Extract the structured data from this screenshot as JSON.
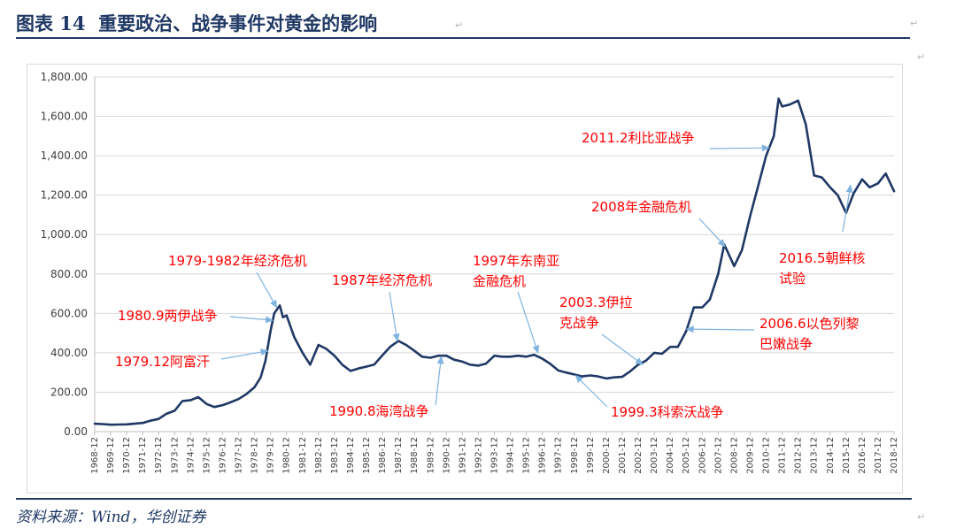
{
  "header": {
    "figure_label": "图表 14",
    "title": "重要政治、战争事件对黄金的影响",
    "para_mark": "↵"
  },
  "source": "资料来源：Wind，华创证券",
  "colors": {
    "line": "#1f3864",
    "annotation": "#ff0000",
    "arrow": "#7fb3e0",
    "accent": "#1f3864"
  },
  "chart_data": {
    "type": "line",
    "title": "",
    "xlabel": "",
    "ylabel": "",
    "ylim": [
      0,
      1800
    ],
    "yticks": [
      "0.00",
      "200.00",
      "400.00",
      "600.00",
      "800.00",
      "1,000.00",
      "1,200.00",
      "1,400.00",
      "1,600.00",
      "1,800.00"
    ],
    "grid": true,
    "legend": "none",
    "x": [
      "1968-12",
      "1969-12",
      "1970-12",
      "1971-12",
      "1972-12",
      "1973-12",
      "1974-12",
      "1975-12",
      "1976-12",
      "1977-12",
      "1978-12",
      "1979-12",
      "1980-12",
      "1981-12",
      "1982-12",
      "1983-12",
      "1984-12",
      "1985-12",
      "1986-12",
      "1987-12",
      "1988-12",
      "1989-12",
      "1990-12",
      "1991-12",
      "1992-12",
      "1993-12",
      "1994-12",
      "1995-12",
      "1996-12",
      "1997-12",
      "1998-12",
      "1999-12",
      "2000-12",
      "2001-12",
      "2002-12",
      "2003-12",
      "2004-12",
      "2005-12",
      "2006-12",
      "2007-12",
      "2008-12",
      "2009-12",
      "2010-12",
      "2011-12",
      "2012-12",
      "2013-12",
      "2014-12",
      "2015-12",
      "2016-12",
      "2017-12",
      "2018-12"
    ],
    "series": [
      {
        "name": "",
        "points": [
          [
            1968.92,
            40
          ],
          [
            1969.4,
            38
          ],
          [
            1969.92,
            35
          ],
          [
            1970.4,
            36
          ],
          [
            1970.92,
            37
          ],
          [
            1971.4,
            40
          ],
          [
            1971.92,
            44
          ],
          [
            1972.4,
            55
          ],
          [
            1972.92,
            64
          ],
          [
            1973.4,
            90
          ],
          [
            1973.92,
            106
          ],
          [
            1974.4,
            155
          ],
          [
            1974.92,
            160
          ],
          [
            1975.4,
            175
          ],
          [
            1975.92,
            140
          ],
          [
            1976.4,
            125
          ],
          [
            1976.92,
            134
          ],
          [
            1977.4,
            148
          ],
          [
            1977.92,
            165
          ],
          [
            1978.4,
            190
          ],
          [
            1978.92,
            226
          ],
          [
            1979.3,
            275
          ],
          [
            1979.6,
            360
          ],
          [
            1979.92,
            512
          ],
          [
            1980.15,
            600
          ],
          [
            1980.5,
            640
          ],
          [
            1980.7,
            580
          ],
          [
            1980.92,
            590
          ],
          [
            1981.4,
            480
          ],
          [
            1981.92,
            400
          ],
          [
            1982.4,
            340
          ],
          [
            1982.92,
            440
          ],
          [
            1983.4,
            420
          ],
          [
            1983.92,
            385
          ],
          [
            1984.4,
            340
          ],
          [
            1984.92,
            308
          ],
          [
            1985.4,
            320
          ],
          [
            1985.92,
            330
          ],
          [
            1986.4,
            340
          ],
          [
            1986.92,
            388
          ],
          [
            1987.4,
            430
          ],
          [
            1987.92,
            460
          ],
          [
            1988.4,
            440
          ],
          [
            1988.92,
            410
          ],
          [
            1989.4,
            380
          ],
          [
            1989.92,
            375
          ],
          [
            1990.4,
            385
          ],
          [
            1990.92,
            385
          ],
          [
            1991.4,
            365
          ],
          [
            1991.92,
            355
          ],
          [
            1992.4,
            340
          ],
          [
            1992.92,
            335
          ],
          [
            1993.4,
            345
          ],
          [
            1993.92,
            385
          ],
          [
            1994.4,
            380
          ],
          [
            1994.92,
            380
          ],
          [
            1995.4,
            385
          ],
          [
            1995.92,
            380
          ],
          [
            1996.4,
            390
          ],
          [
            1996.92,
            370
          ],
          [
            1997.4,
            345
          ],
          [
            1997.92,
            310
          ],
          [
            1998.4,
            300
          ],
          [
            1998.92,
            290
          ],
          [
            1999.4,
            280
          ],
          [
            1999.92,
            285
          ],
          [
            2000.4,
            280
          ],
          [
            2000.92,
            270
          ],
          [
            2001.4,
            275
          ],
          [
            2001.92,
            278
          ],
          [
            2002.4,
            305
          ],
          [
            2002.92,
            340
          ],
          [
            2003.4,
            360
          ],
          [
            2003.92,
            400
          ],
          [
            2004.4,
            395
          ],
          [
            2004.92,
            430
          ],
          [
            2005.4,
            430
          ],
          [
            2005.92,
            510
          ],
          [
            2006.4,
            630
          ],
          [
            2006.92,
            630
          ],
          [
            2007.4,
            670
          ],
          [
            2007.92,
            800
          ],
          [
            2008.3,
            950
          ],
          [
            2008.92,
            840
          ],
          [
            2009.4,
            920
          ],
          [
            2009.92,
            1095
          ],
          [
            2010.4,
            1240
          ],
          [
            2010.92,
            1400
          ],
          [
            2011.4,
            1500
          ],
          [
            2011.7,
            1690
          ],
          [
            2011.92,
            1650
          ],
          [
            2012.4,
            1660
          ],
          [
            2012.92,
            1680
          ],
          [
            2013.4,
            1560
          ],
          [
            2013.92,
            1300
          ],
          [
            2014.4,
            1290
          ],
          [
            2014.92,
            1240
          ],
          [
            2015.4,
            1200
          ],
          [
            2015.92,
            1110
          ],
          [
            2016.4,
            1210
          ],
          [
            2016.92,
            1280
          ],
          [
            2017.4,
            1240
          ],
          [
            2017.92,
            1260
          ],
          [
            2018.4,
            1310
          ],
          [
            2018.92,
            1220
          ]
        ]
      }
    ],
    "annotations": [
      {
        "text": "1979-1982年经济危机",
        "target": [
          1980.3,
          630
        ]
      },
      {
        "text": "1980.9两伊战争",
        "target": [
          1980.05,
          565
        ]
      },
      {
        "text": "1979.12阿富汗",
        "target": [
          1979.75,
          410
        ]
      },
      {
        "text": "1987年经济危机",
        "target": [
          1987.85,
          460
        ]
      },
      {
        "text": "1990.8海湾战争",
        "target": [
          1990.6,
          380
        ]
      },
      {
        "text": "1997年东南亚",
        "target": [
          1996.65,
          400
        ]
      },
      {
        "text": "金融危机",
        "target": null
      },
      {
        "text": "1999.3科索沃战争",
        "target": [
          1999.0,
          285
        ]
      },
      {
        "text": "2003.3伊拉",
        "target": [
          2003.2,
          340
        ]
      },
      {
        "text": "克战争",
        "target": null
      },
      {
        "text": "2006.6以色列黎",
        "target": [
          2005.95,
          520
        ]
      },
      {
        "text": "巴嫩战争",
        "target": null
      },
      {
        "text": "2008年金融危机",
        "target": [
          2008.35,
          940
        ]
      },
      {
        "text": "2011.2利比亚战争",
        "target": [
          2011.1,
          1440
        ]
      },
      {
        "text": "2016.5朝鲜核",
        "target": [
          2016.2,
          1250
        ]
      },
      {
        "text": "试验",
        "target": null
      }
    ]
  }
}
